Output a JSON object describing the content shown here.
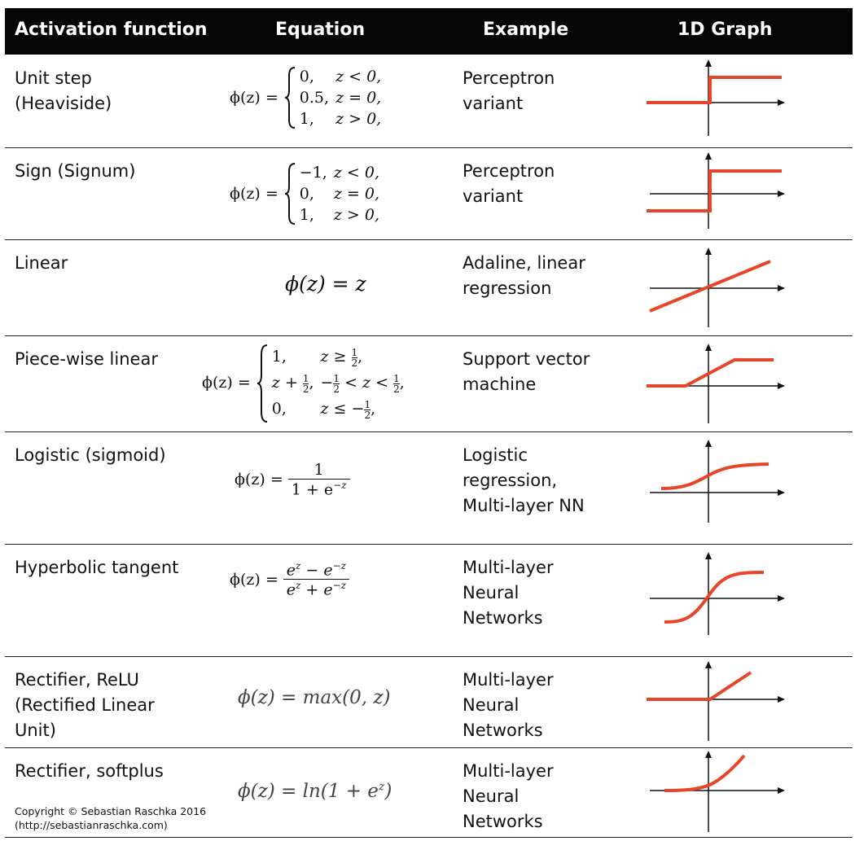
{
  "header": {
    "col_function": "Activation function",
    "col_equation": "Equation",
    "col_example": "Example",
    "col_graph": "1D Graph"
  },
  "rows": [
    {
      "name_lines": [
        "Unit step",
        "(Heaviside)"
      ],
      "example_lines": [
        "Perceptron",
        "variant"
      ],
      "equation": {
        "lhs": "ϕ(z) =",
        "cases": [
          [
            "0,",
            "z < 0,"
          ],
          [
            "0.5,",
            "z = 0,"
          ],
          [
            "1,",
            "z > 0,"
          ]
        ]
      },
      "graph": "unit-step"
    },
    {
      "name_lines": [
        "Sign (Signum)"
      ],
      "example_lines": [
        "Perceptron",
        "variant"
      ],
      "equation": {
        "lhs": "ϕ(z) =",
        "cases": [
          [
            "−1,",
            "z < 0,"
          ],
          [
            "0,",
            "z = 0,"
          ],
          [
            "1,",
            "z > 0,"
          ]
        ]
      },
      "graph": "sign"
    },
    {
      "name_lines": [
        "Linear"
      ],
      "example_lines": [
        "Adaline, linear",
        "regression"
      ],
      "equation": {
        "text": "ϕ(z) = z"
      },
      "graph": "linear"
    },
    {
      "name_lines": [
        "Piece-wise linear"
      ],
      "example_lines": [
        "Support vector",
        "machine"
      ],
      "equation": {
        "lhs": "ϕ(z) =",
        "cases_pw": [
          {
            "a": "1,",
            "b_pre": "z ≥ ",
            "b_frac": [
              "1",
              "2"
            ],
            "b_post": ","
          },
          {
            "a_pre": "z + ",
            "a_frac": [
              "1",
              "2"
            ],
            "a_post": ",",
            "b_pre": "−",
            "b_frac": [
              "1",
              "2"
            ],
            "b_mid": " < z < ",
            "b_frac2": [
              "1",
              "2"
            ],
            "b_post": ","
          },
          {
            "a": "0,",
            "b_pre": "z ≤ −",
            "b_frac": [
              "1",
              "2"
            ],
            "b_post": ","
          }
        ]
      },
      "graph": "piecewise"
    },
    {
      "name_lines": [
        "Logistic (sigmoid)"
      ],
      "example_lines": [
        "Logistic",
        "regression,",
        "Multi-layer NN"
      ],
      "equation": {
        "lhs": "ϕ(z) =",
        "num": "1",
        "den": "1 + e",
        "den_sup": "−z"
      },
      "graph": "sigmoid"
    },
    {
      "name_lines": [
        "Hyperbolic tangent"
      ],
      "example_lines": [
        "Multi-layer",
        "Neural",
        "Networks"
      ],
      "equation": {
        "lhs": "ϕ(z) =",
        "num": "e",
        "num_sup": "z",
        "num_mid": " − e",
        "num_sup2": "−z",
        "den": "e",
        "den_sup": "z",
        "den_mid": " + e",
        "den_sup2": "−z"
      },
      "graph": "tanh"
    },
    {
      "name_lines": [
        "Rectifier, ReLU",
        "(Rectified Linear",
        "Unit)"
      ],
      "example_lines": [
        "Multi-layer",
        "Neural",
        "Networks"
      ],
      "equation": {
        "text": "ϕ(z) = max(0, z)"
      },
      "graph": "relu"
    },
    {
      "name_lines": [
        "Rectifier, softplus"
      ],
      "example_lines": [
        "Multi-layer",
        "Neural",
        "Networks"
      ],
      "equation": {
        "text_pre": "ϕ(z) = ln(1 + e",
        "text_sup": "z",
        "text_post": ")"
      },
      "graph": "softplus"
    }
  ],
  "copyright": {
    "line1": "Copyright © Sebastian Raschka 2016",
    "line2": "(http://sebastianraschka.com)"
  },
  "colors": {
    "header_bg": "#050505",
    "curve": "#e8442a",
    "axis": "#111111"
  }
}
